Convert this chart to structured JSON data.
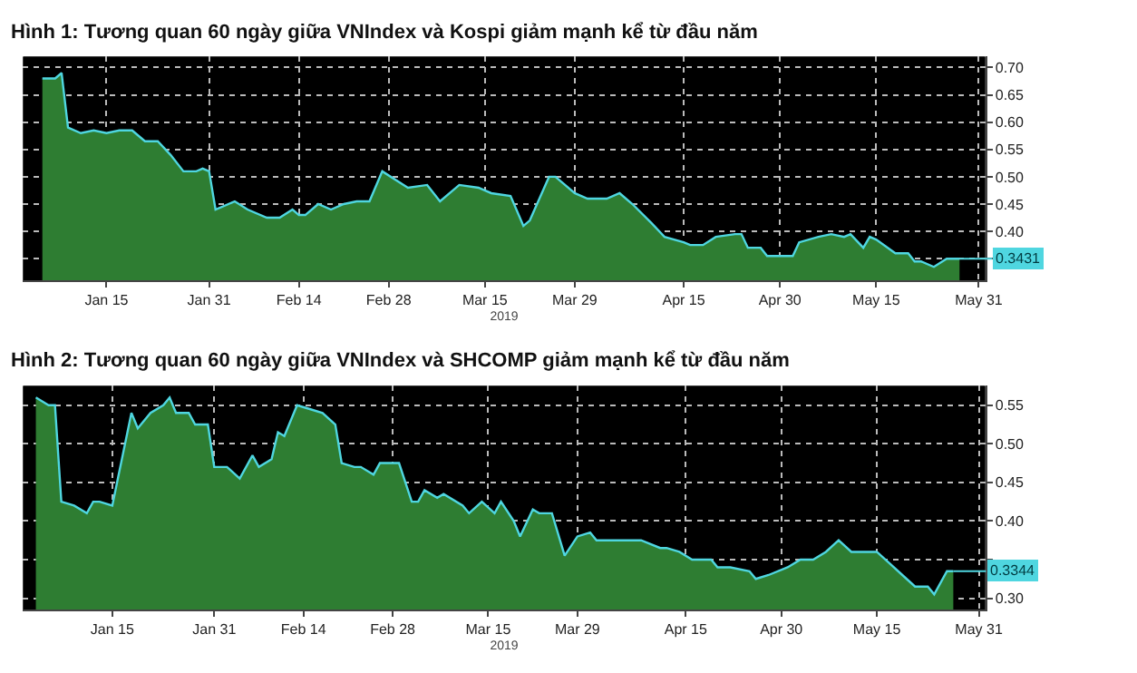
{
  "chart_data": [
    {
      "type": "area",
      "title": "Hình 1: Tương quan 60 ngày giữa VNIndex và Kospi giảm mạnh kể từ đầu năm",
      "xlabel": "2019",
      "x": [
        "2019-01-05",
        "2019-01-07",
        "2019-01-08",
        "2019-01-09",
        "2019-01-11",
        "2019-01-13",
        "2019-01-15",
        "2019-01-17",
        "2019-01-19",
        "2019-01-21",
        "2019-01-23",
        "2019-01-25",
        "2019-01-27",
        "2019-01-29",
        "2019-01-30",
        "2019-01-31",
        "2019-02-01",
        "2019-02-04",
        "2019-02-06",
        "2019-02-09",
        "2019-02-11",
        "2019-02-13",
        "2019-02-14",
        "2019-02-15",
        "2019-02-17",
        "2019-02-19",
        "2019-02-21",
        "2019-02-23",
        "2019-02-25",
        "2019-02-27",
        "2019-03-03",
        "2019-03-06",
        "2019-03-08",
        "2019-03-11",
        "2019-03-14",
        "2019-03-16",
        "2019-03-19",
        "2019-03-21",
        "2019-03-22",
        "2019-03-25",
        "2019-03-26",
        "2019-03-29",
        "2019-03-31",
        "2019-04-03",
        "2019-04-05",
        "2019-04-07",
        "2019-04-10",
        "2019-04-12",
        "2019-04-15",
        "2019-04-16",
        "2019-04-18",
        "2019-04-20",
        "2019-04-23",
        "2019-04-24",
        "2019-04-25",
        "2019-04-27",
        "2019-04-28",
        "2019-05-02",
        "2019-05-03",
        "2019-05-06",
        "2019-05-08",
        "2019-05-10",
        "2019-05-11",
        "2019-05-13",
        "2019-05-14",
        "2019-05-15",
        "2019-05-18",
        "2019-05-20",
        "2019-05-21",
        "2019-05-22",
        "2019-05-24",
        "2019-05-26",
        "2019-05-28"
      ],
      "series": [
        {
          "color": "#2e7d32",
          "values": [
            0.68,
            0.68,
            0.69,
            0.59,
            0.58,
            0.585,
            0.58,
            0.585,
            0.585,
            0.565,
            0.565,
            0.54,
            0.51,
            0.51,
            0.515,
            0.51,
            0.44,
            0.455,
            0.44,
            0.425,
            0.425,
            0.44,
            0.43,
            0.43,
            0.45,
            0.44,
            0.45,
            0.455,
            0.455,
            0.51,
            0.48,
            0.485,
            0.455,
            0.485,
            0.48,
            0.47,
            0.465,
            0.41,
            0.42,
            0.5,
            0.5,
            0.47,
            0.46,
            0.46,
            0.47,
            0.45,
            0.415,
            0.39,
            0.38,
            0.375,
            0.375,
            0.39,
            0.395,
            0.395,
            0.37,
            0.37,
            0.355,
            0.355,
            0.38,
            0.39,
            0.395,
            0.39,
            0.395,
            0.37,
            0.39,
            0.385,
            0.36,
            0.36,
            0.345,
            0.345,
            0.335,
            0.35,
            0.35
          ]
        }
      ],
      "xlim": [
        "2019-01-02",
        "2019-06-01"
      ],
      "xticks": [
        {
          "value": "2019-01-15",
          "label": "Jan 15"
        },
        {
          "value": "2019-01-31",
          "label": "Jan 31"
        },
        {
          "value": "2019-02-14",
          "label": "Feb 14"
        },
        {
          "value": "2019-02-28",
          "label": "Feb 28"
        },
        {
          "value": "2019-03-15",
          "label": "Mar 15"
        },
        {
          "value": "2019-03-29",
          "label": "Mar 29"
        },
        {
          "value": "2019-04-15",
          "label": "Apr 15"
        },
        {
          "value": "2019-04-30",
          "label": "Apr 30"
        },
        {
          "value": "2019-05-15",
          "label": "May 15"
        },
        {
          "value": "2019-05-31",
          "label": "May 31"
        }
      ],
      "ylim": [
        0.31,
        0.72
      ],
      "yticks": [
        {
          "value": 0.35,
          "label": null
        },
        {
          "value": 0.4,
          "label": "0.40"
        },
        0.45,
        {
          "value": 0.5,
          "label": "0.50"
        },
        0.55,
        {
          "value": 0.6,
          "label": "0.60"
        },
        0.65,
        {
          "value": 0.7,
          "label": "0.70"
        }
      ],
      "annotations": [
        {
          "text": "0.3431",
          "x": "2019-05-28",
          "y": 0.35
        }
      ],
      "grid": true
    },
    {
      "type": "area",
      "title": "Hình 2: Tương quan 60 ngày giữa VNIndex và SHCOMP giảm mạnh kể từ đầu năm",
      "xlabel": "2019",
      "x": [
        "2019-01-03",
        "2019-01-05",
        "2019-01-06",
        "2019-01-07",
        "2019-01-09",
        "2019-01-11",
        "2019-01-12",
        "2019-01-13",
        "2019-01-15",
        "2019-01-16",
        "2019-01-18",
        "2019-01-19",
        "2019-01-21",
        "2019-01-23",
        "2019-01-24",
        "2019-01-25",
        "2019-01-27",
        "2019-01-28",
        "2019-01-30",
        "2019-01-31",
        "2019-02-02",
        "2019-02-04",
        "2019-02-06",
        "2019-02-07",
        "2019-02-09",
        "2019-02-10",
        "2019-02-11",
        "2019-02-13",
        "2019-02-15",
        "2019-02-17",
        "2019-02-19",
        "2019-02-20",
        "2019-02-22",
        "2019-02-23",
        "2019-02-25",
        "2019-02-26",
        "2019-03-01",
        "2019-03-03",
        "2019-03-04",
        "2019-03-05",
        "2019-03-07",
        "2019-03-08",
        "2019-03-11",
        "2019-03-12",
        "2019-03-14",
        "2019-03-16",
        "2019-03-17",
        "2019-03-19",
        "2019-03-20",
        "2019-03-22",
        "2019-03-23",
        "2019-03-25",
        "2019-03-27",
        "2019-03-29",
        "2019-03-31",
        "2019-04-01",
        "2019-04-04",
        "2019-04-07",
        "2019-04-08",
        "2019-04-11",
        "2019-04-12",
        "2019-04-14",
        "2019-04-16",
        "2019-04-19",
        "2019-04-20",
        "2019-04-22",
        "2019-04-25",
        "2019-04-26",
        "2019-04-28",
        "2019-05-01",
        "2019-05-03",
        "2019-05-05",
        "2019-05-07",
        "2019-05-09",
        "2019-05-11",
        "2019-05-13",
        "2019-05-15",
        "2019-05-17",
        "2019-05-19",
        "2019-05-21",
        "2019-05-23",
        "2019-05-24",
        "2019-05-26",
        "2019-05-27"
      ],
      "series": [
        {
          "color": "#2e7d32",
          "values": [
            0.56,
            0.55,
            0.55,
            0.425,
            0.42,
            0.41,
            0.425,
            0.425,
            0.42,
            0.46,
            0.54,
            0.52,
            0.54,
            0.55,
            0.56,
            0.54,
            0.54,
            0.525,
            0.525,
            0.47,
            0.47,
            0.455,
            0.485,
            0.47,
            0.48,
            0.515,
            0.51,
            0.55,
            0.545,
            0.54,
            0.525,
            0.475,
            0.47,
            0.47,
            0.46,
            0.475,
            0.475,
            0.425,
            0.425,
            0.44,
            0.43,
            0.435,
            0.42,
            0.41,
            0.425,
            0.41,
            0.425,
            0.4,
            0.38,
            0.415,
            0.41,
            0.41,
            0.355,
            0.38,
            0.385,
            0.375,
            0.375,
            0.375,
            0.375,
            0.365,
            0.365,
            0.36,
            0.35,
            0.35,
            0.34,
            0.34,
            0.335,
            0.325,
            0.33,
            0.34,
            0.35,
            0.35,
            0.36,
            0.375,
            0.36,
            0.36,
            0.36,
            0.345,
            0.33,
            0.315,
            0.315,
            0.305,
            0.335,
            0.335
          ]
        }
      ],
      "xlim": [
        "2019-01-01",
        "2019-06-01"
      ],
      "xticks": [
        {
          "value": "2019-01-15",
          "label": "Jan 15"
        },
        {
          "value": "2019-01-31",
          "label": "Jan 31"
        },
        {
          "value": "2019-02-14",
          "label": "Feb 14"
        },
        {
          "value": "2019-02-28",
          "label": "Feb 28"
        },
        {
          "value": "2019-03-15",
          "label": "Mar 15"
        },
        {
          "value": "2019-03-29",
          "label": "Mar 29"
        },
        {
          "value": "2019-04-15",
          "label": "Apr 15"
        },
        {
          "value": "2019-04-30",
          "label": "Apr 30"
        },
        {
          "value": "2019-05-15",
          "label": "May 15"
        },
        {
          "value": "2019-05-31",
          "label": "May 31"
        }
      ],
      "ylim": [
        0.285,
        0.575
      ],
      "yticks": [
        {
          "value": 0.3,
          "label": "0.30"
        },
        {
          "value": 0.35,
          "label": null
        },
        {
          "value": 0.4,
          "label": "0.40"
        },
        0.45,
        {
          "value": 0.5,
          "label": "0.50"
        },
        0.55
      ],
      "annotations": [
        {
          "text": "0.3344",
          "x": "2019-05-27",
          "y": 0.335
        }
      ],
      "grid": true
    }
  ]
}
